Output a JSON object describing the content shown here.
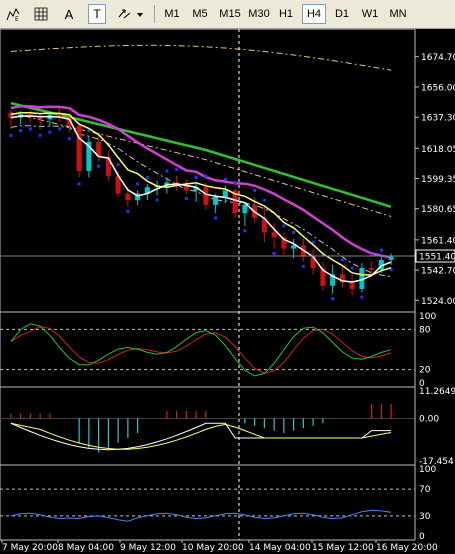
{
  "toolbar": {
    "tools": [
      {
        "name": "period-separators-icon",
        "label": ""
      },
      {
        "name": "grid-icon",
        "label": ""
      },
      {
        "name": "text-tool",
        "label": "A"
      },
      {
        "name": "text-label-tool",
        "label": "T"
      },
      {
        "name": "arrows-tool",
        "label": ""
      }
    ],
    "timeframes": [
      "M1",
      "M5",
      "M15",
      "M30",
      "H1",
      "H4",
      "D1",
      "W1",
      "MN"
    ],
    "active_timeframe": "H4"
  },
  "main_axis": {
    "ticks": [
      "1674.70",
      "1656.00",
      "1637.30",
      "1618.05",
      "1599.35",
      "1580.65",
      "1561.40",
      "1542.70",
      "1524.00"
    ],
    "current_price": "1551.40"
  },
  "stoch_axis": {
    "ticks": [
      "100",
      "80",
      "20",
      "0"
    ]
  },
  "macd_axis": {
    "ticks": [
      "11.2649",
      "0.00",
      "-17.454"
    ]
  },
  "rsi_axis": {
    "ticks": [
      "100",
      "70",
      "30",
      "0"
    ]
  },
  "time_axis": {
    "labels": [
      "7 May 20:00",
      "8 May 04:00",
      "9 May 12:00",
      "10 May 20:00",
      "14 May 04:00",
      "15 May 12:00",
      "16 May 20:00"
    ]
  },
  "colors": {
    "background": "#000000",
    "bull_candle": "#00c8c8",
    "bear_candle": "#d01010",
    "ma_white": "#ffffff",
    "ma_yellow": "#ffff66",
    "ma_magenta": "#d040d0",
    "ma_green": "#30c030",
    "envelope": "#e8c070",
    "parabolic_sar": "#2030ff",
    "rsi_line": "#5080ff"
  },
  "chart_data": {
    "type": "candlestick",
    "symbol_timeframe": "H4",
    "ylim": [
      1518,
      1690
    ],
    "x": [
      "7 May 20:00",
      "8 May 04:00",
      "9 May 12:00",
      "10 May 20:00",
      "14 May 04:00",
      "15 May 12:00",
      "16 May 20:00"
    ],
    "ohlc": [
      [
        1640,
        1642,
        1630,
        1637
      ],
      [
        1637,
        1641,
        1633,
        1639
      ],
      [
        1639,
        1642,
        1634,
        1638
      ],
      [
        1638,
        1640,
        1630,
        1636
      ],
      [
        1636,
        1641,
        1632,
        1639
      ],
      [
        1639,
        1643,
        1634,
        1637
      ],
      [
        1637,
        1640,
        1628,
        1632
      ],
      [
        1632,
        1634,
        1600,
        1604
      ],
      [
        1604,
        1625,
        1600,
        1622
      ],
      [
        1622,
        1628,
        1610,
        1613
      ],
      [
        1613,
        1616,
        1598,
        1601
      ],
      [
        1601,
        1604,
        1588,
        1590
      ],
      [
        1590,
        1594,
        1582,
        1586
      ],
      [
        1586,
        1592,
        1583,
        1590
      ],
      [
        1590,
        1596,
        1586,
        1594
      ],
      [
        1594,
        1598,
        1589,
        1595
      ],
      [
        1595,
        1600,
        1590,
        1597
      ],
      [
        1597,
        1601,
        1592,
        1596
      ],
      [
        1596,
        1599,
        1590,
        1592
      ],
      [
        1592,
        1596,
        1585,
        1594
      ],
      [
        1594,
        1597,
        1580,
        1583
      ],
      [
        1583,
        1590,
        1578,
        1588
      ],
      [
        1588,
        1595,
        1584,
        1592
      ],
      [
        1592,
        1593,
        1575,
        1578
      ],
      [
        1578,
        1585,
        1570,
        1583
      ],
      [
        1583,
        1588,
        1572,
        1575
      ],
      [
        1575,
        1582,
        1560,
        1566
      ],
      [
        1566,
        1572,
        1556,
        1563
      ],
      [
        1563,
        1566,
        1552,
        1556
      ],
      [
        1556,
        1562,
        1550,
        1558
      ],
      [
        1558,
        1562,
        1548,
        1551
      ],
      [
        1551,
        1556,
        1540,
        1544
      ],
      [
        1544,
        1548,
        1530,
        1533
      ],
      [
        1533,
        1546,
        1528,
        1540
      ],
      [
        1540,
        1545,
        1532,
        1535
      ],
      [
        1535,
        1540,
        1527,
        1531
      ],
      [
        1531,
        1547,
        1529,
        1544
      ],
      [
        1544,
        1548,
        1540,
        1543
      ],
      [
        1543,
        1551,
        1541,
        1549
      ],
      [
        1549,
        1553,
        1546,
        1551
      ]
    ]
  }
}
